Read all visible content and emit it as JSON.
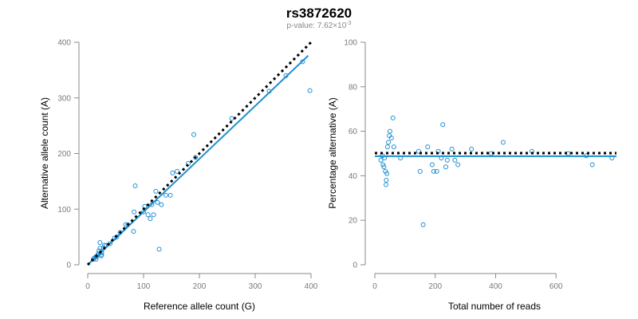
{
  "title": "rs3872620",
  "subtitle": {
    "prefix": "p-value: 7.62×10",
    "exponent": "-3"
  },
  "colors": {
    "points": "#1f8fd1",
    "fit_line": "#1f8fd1",
    "reference_line": "#000000"
  },
  "chart_data": [
    {
      "type": "scatter",
      "xlabel": "Reference allele count (G)",
      "ylabel": "Alternative allele count (A)",
      "xlim": [
        0,
        400
      ],
      "ylim": [
        0,
        400
      ],
      "xticks": [
        0,
        100,
        200,
        300,
        400
      ],
      "yticks": [
        0,
        100,
        200,
        300,
        400
      ],
      "grid": false,
      "points": [
        [
          10,
          10
        ],
        [
          12,
          12
        ],
        [
          14,
          14
        ],
        [
          15,
          10
        ],
        [
          16,
          15
        ],
        [
          18,
          18
        ],
        [
          20,
          20
        ],
        [
          20,
          25
        ],
        [
          22,
          30
        ],
        [
          22,
          40
        ],
        [
          24,
          16
        ],
        [
          25,
          22
        ],
        [
          25,
          18
        ],
        [
          28,
          30
        ],
        [
          30,
          35
        ],
        [
          33,
          35
        ],
        [
          40,
          38
        ],
        [
          48,
          48
        ],
        [
          52,
          50
        ],
        [
          58,
          58
        ],
        [
          68,
          72
        ],
        [
          72,
          72
        ],
        [
          82,
          60
        ],
        [
          83,
          95
        ],
        [
          85,
          142
        ],
        [
          100,
          95
        ],
        [
          102,
          105
        ],
        [
          108,
          90
        ],
        [
          112,
          83
        ],
        [
          115,
          108
        ],
        [
          118,
          90
        ],
        [
          122,
          132
        ],
        [
          125,
          112
        ],
        [
          128,
          28
        ],
        [
          132,
          108
        ],
        [
          140,
          125
        ],
        [
          148,
          125
        ],
        [
          152,
          165
        ],
        [
          160,
          168
        ],
        [
          180,
          182
        ],
        [
          190,
          234
        ],
        [
          193,
          193
        ],
        [
          258,
          263
        ],
        [
          325,
          312
        ],
        [
          355,
          340
        ],
        [
          385,
          365
        ],
        [
          398,
          313
        ]
      ],
      "fit_line": {
        "x": [
          0,
          395
        ],
        "y": [
          0,
          376
        ]
      },
      "reference_line": {
        "x": [
          0,
          400
        ],
        "y": [
          0,
          400
        ]
      }
    },
    {
      "type": "scatter",
      "xlabel": "Total number of reads",
      "ylabel": "Percentage alternative (A)",
      "xlim": [
        0,
        800
      ],
      "ylim": [
        0,
        100
      ],
      "xticks": [
        0,
        200,
        400,
        600
      ],
      "yticks": [
        0,
        20,
        40,
        60,
        80,
        100
      ],
      "grid": false,
      "points": [
        [
          20,
          47
        ],
        [
          25,
          49
        ],
        [
          27,
          45
        ],
        [
          30,
          44
        ],
        [
          32,
          48
        ],
        [
          35,
          42
        ],
        [
          37,
          36
        ],
        [
          38,
          38
        ],
        [
          40,
          41
        ],
        [
          42,
          53
        ],
        [
          45,
          55
        ],
        [
          48,
          58
        ],
        [
          50,
          60
        ],
        [
          55,
          57
        ],
        [
          60,
          66
        ],
        [
          63,
          53
        ],
        [
          85,
          48
        ],
        [
          145,
          51
        ],
        [
          150,
          42
        ],
        [
          160,
          18
        ],
        [
          175,
          53
        ],
        [
          190,
          45
        ],
        [
          195,
          42
        ],
        [
          205,
          42
        ],
        [
          210,
          51
        ],
        [
          220,
          48
        ],
        [
          225,
          63
        ],
        [
          235,
          44
        ],
        [
          240,
          47
        ],
        [
          255,
          52
        ],
        [
          265,
          47
        ],
        [
          275,
          45
        ],
        [
          320,
          52
        ],
        [
          385,
          50
        ],
        [
          425,
          55
        ],
        [
          520,
          51
        ],
        [
          640,
          50
        ],
        [
          700,
          49
        ],
        [
          720,
          45
        ],
        [
          785,
          48
        ]
      ],
      "fit_line": {
        "x": [
          0,
          800
        ],
        "y": [
          48.8,
          48.8
        ]
      },
      "reference_line": {
        "x": [
          0,
          800
        ],
        "y": [
          50.2,
          50.2
        ]
      }
    }
  ]
}
